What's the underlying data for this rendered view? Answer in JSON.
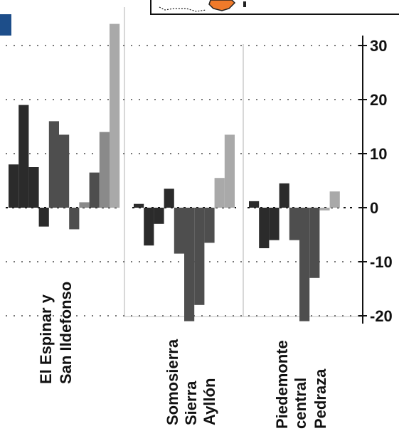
{
  "chart_data": {
    "type": "bar",
    "title": "",
    "xlabel": "",
    "ylabel": "",
    "ylim": [
      -20,
      30
    ],
    "yticks": [
      30,
      20,
      10,
      0,
      -10,
      -20
    ],
    "grid": "dotted horizontal at y ticks",
    "groups": [
      {
        "label_lines": [
          "El Espinar y",
          "San Ildefonso"
        ],
        "bars": [
          8,
          19,
          7.5,
          -3.5,
          16,
          13.5,
          -4,
          1,
          6.5,
          14,
          34
        ]
      },
      {
        "label_lines": [
          "Somosierra",
          "Sierra",
          "Ayllón"
        ],
        "bars": [
          0.7,
          -7,
          -3,
          3.5,
          -8.5,
          -21,
          -18,
          -6.5,
          5.5,
          13.5
        ]
      },
      {
        "label_lines": [
          "Piedemonte",
          "central",
          "Pedraza"
        ],
        "bars": [
          1.2,
          -7.5,
          -6,
          4.5,
          -6,
          -21,
          -13,
          -0.5,
          3
        ]
      }
    ],
    "colors": {
      "dark": "#2b2b2b",
      "mid": "#4e4e4e",
      "light": "#8a8a8a",
      "lighter": "#a9a9a9"
    }
  },
  "inset_map": {
    "fill": "#f07a2a",
    "stroke": "#222222"
  }
}
